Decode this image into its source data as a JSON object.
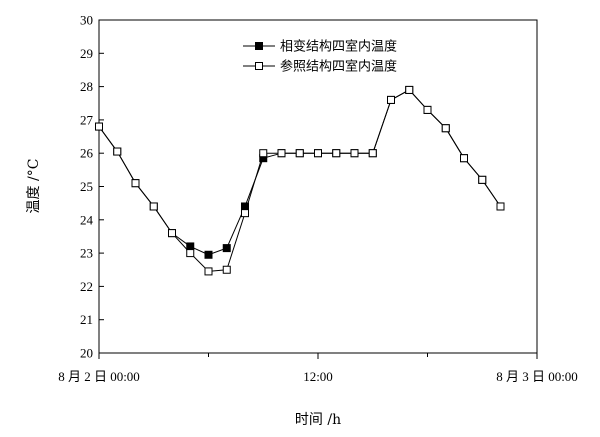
{
  "chart_data": {
    "type": "line",
    "xlabel": "时间 /h",
    "ylabel": "温度 /°C",
    "ylim": [
      20,
      30
    ],
    "xlim": [
      0,
      24
    ],
    "yticks": [
      20,
      21,
      22,
      23,
      24,
      25,
      26,
      27,
      28,
      29,
      30
    ],
    "xticks": [
      {
        "value": 0,
        "label": "8 月 2 日 00:00"
      },
      {
        "value": 12,
        "label": "12:00"
      },
      {
        "value": 24,
        "label": "8 月 3 日 00:00"
      }
    ],
    "legend_position": "top-right",
    "series": [
      {
        "name": "相变结构四室内温度",
        "marker": "filled-square",
        "color": "#000000",
        "points": [
          [
            0,
            26.8
          ],
          [
            1,
            26.05
          ],
          [
            2,
            25.1
          ],
          [
            3,
            24.4
          ],
          [
            4,
            23.6
          ],
          [
            5,
            23.2
          ],
          [
            6,
            22.95
          ],
          [
            7,
            23.15
          ],
          [
            8,
            24.4
          ],
          [
            9,
            25.85
          ],
          [
            10,
            26.0
          ],
          [
            11,
            26.0
          ],
          [
            12,
            26.0
          ],
          [
            13,
            26.0
          ],
          [
            14,
            26.0
          ],
          [
            15,
            26.0
          ],
          [
            16,
            27.6
          ],
          [
            17,
            27.9
          ],
          [
            18,
            27.3
          ],
          [
            19,
            26.75
          ],
          [
            20,
            25.85
          ],
          [
            21,
            25.2
          ],
          [
            22,
            24.4
          ]
        ]
      },
      {
        "name": "参照结构四室内温度",
        "marker": "open-square",
        "color": "#000000",
        "points": [
          [
            0,
            26.8
          ],
          [
            1,
            26.05
          ],
          [
            2,
            25.1
          ],
          [
            3,
            24.4
          ],
          [
            4,
            23.6
          ],
          [
            5,
            23.0
          ],
          [
            6,
            22.45
          ],
          [
            7,
            22.5
          ],
          [
            8,
            24.2
          ],
          [
            9,
            26.0
          ],
          [
            10,
            26.0
          ],
          [
            11,
            26.0
          ],
          [
            12,
            26.0
          ],
          [
            13,
            26.0
          ],
          [
            14,
            26.0
          ],
          [
            15,
            26.0
          ],
          [
            16,
            27.6
          ],
          [
            17,
            27.9
          ],
          [
            18,
            27.3
          ],
          [
            19,
            26.75
          ],
          [
            20,
            25.85
          ],
          [
            21,
            25.2
          ],
          [
            22,
            24.4
          ]
        ]
      }
    ]
  }
}
